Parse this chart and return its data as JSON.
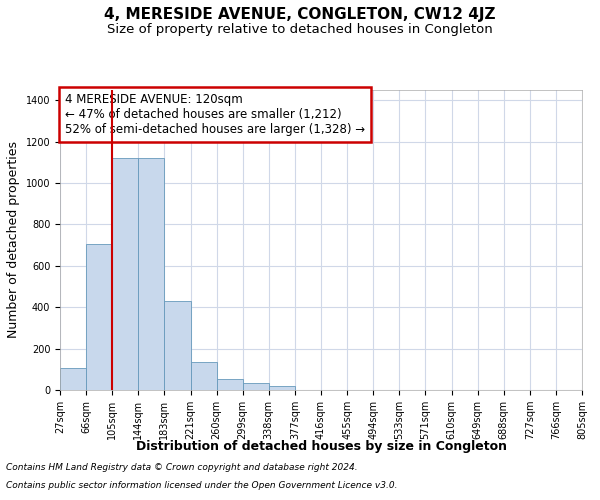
{
  "title": "4, MERESIDE AVENUE, CONGLETON, CW12 4JZ",
  "subtitle": "Size of property relative to detached houses in Congleton",
  "xlabel": "Distribution of detached houses by size in Congleton",
  "ylabel": "Number of detached properties",
  "bar_values": [
    105,
    705,
    1120,
    1120,
    430,
    135,
    55,
    35,
    20,
    0,
    0,
    0,
    0,
    0,
    0,
    0,
    0,
    0,
    0,
    0
  ],
  "bin_labels": [
    "27sqm",
    "66sqm",
    "105sqm",
    "144sqm",
    "183sqm",
    "221sqm",
    "260sqm",
    "299sqm",
    "338sqm",
    "377sqm",
    "416sqm",
    "455sqm",
    "494sqm",
    "533sqm",
    "571sqm",
    "610sqm",
    "649sqm",
    "688sqm",
    "727sqm",
    "766sqm",
    "805sqm"
  ],
  "bar_color": "#c8d8ec",
  "bar_edgecolor": "#6699bb",
  "redline_x": 1.5,
  "annotation_text": "4 MERESIDE AVENUE: 120sqm\n← 47% of detached houses are smaller (1,212)\n52% of semi-detached houses are larger (1,328) →",
  "annotation_box_color": "#ffffff",
  "annotation_box_edgecolor": "#cc0000",
  "ylim": [
    0,
    1450
  ],
  "yticks": [
    0,
    200,
    400,
    600,
    800,
    1000,
    1200,
    1400
  ],
  "footer_line1": "Contains HM Land Registry data © Crown copyright and database right 2024.",
  "footer_line2": "Contains public sector information licensed under the Open Government Licence v3.0.",
  "bg_color": "#ffffff",
  "plot_bg_color": "#ffffff",
  "grid_color": "#d0d8e8",
  "redline_color": "#cc0000",
  "title_fontsize": 11,
  "subtitle_fontsize": 9.5,
  "axis_label_fontsize": 9,
  "tick_fontsize": 7,
  "annotation_fontsize": 8.5,
  "footer_fontsize": 6.5
}
